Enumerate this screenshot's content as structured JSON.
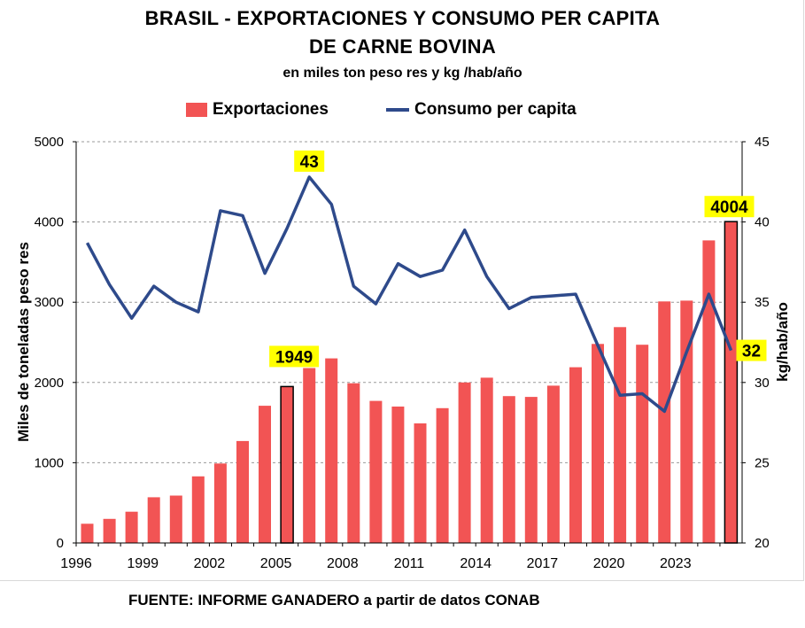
{
  "chart_data": {
    "type": "bar+line",
    "title": "BRASIL - EXPORTACIONES Y CONSUMO PER CAPITA",
    "title_line2": "DE CARNE BOVINA",
    "subtitle": "en miles ton peso res y kg /hab/año",
    "ylabel_left": "Miles de toneladas peso res",
    "ylabel_right": "kg/hab/año",
    "ylim_left": [
      0,
      5000
    ],
    "ylim_right": [
      20,
      45
    ],
    "yticks_left": [
      "0",
      "1000",
      "2000",
      "3000",
      "4000",
      "5000"
    ],
    "yticks_right": [
      "20",
      "25",
      "30",
      "35",
      "40",
      "45"
    ],
    "years": [
      1996,
      1997,
      1998,
      1999,
      2000,
      2001,
      2002,
      2003,
      2004,
      2005,
      2006,
      2007,
      2008,
      2009,
      2010,
      2011,
      2012,
      2013,
      2014,
      2015,
      2016,
      2017,
      2018,
      2019,
      2020,
      2021,
      2022,
      2023,
      2024,
      2025
    ],
    "xtick_labels": [
      "1996",
      "1999",
      "2002",
      "2005",
      "2008",
      "2011",
      "2014",
      "2017",
      "2020",
      "2023"
    ],
    "series": [
      {
        "name": "Exportaciones",
        "type": "bar",
        "color": "#f25454",
        "values": [
          240,
          300,
          390,
          570,
          590,
          830,
          990,
          1270,
          1710,
          1949,
          2180,
          2300,
          1990,
          1770,
          1700,
          1490,
          1680,
          2000,
          2060,
          1830,
          1820,
          1960,
          2190,
          2480,
          2690,
          2470,
          3010,
          3020,
          3770,
          4004
        ]
      },
      {
        "name": "Consumo per capita",
        "type": "line",
        "color": "#2e4a8b",
        "values": [
          38.7,
          36.1,
          34.0,
          36.0,
          35.0,
          34.4,
          40.7,
          40.4,
          36.8,
          39.6,
          42.8,
          41.1,
          36.0,
          34.9,
          37.4,
          36.6,
          37.0,
          39.5,
          36.6,
          34.6,
          35.3,
          35.4,
          35.5,
          32.3,
          29.2,
          29.3,
          28.2,
          31.9,
          35.5,
          32.0
        ]
      }
    ],
    "annotations": [
      {
        "label": "43",
        "year": 2006,
        "series": "Consumo per capita"
      },
      {
        "label": "1949",
        "year": 2005,
        "series": "Exportaciones"
      },
      {
        "label": "4004",
        "year": 2025,
        "series": "Exportaciones"
      },
      {
        "label": "32",
        "year": 2025,
        "series": "Consumo per capita"
      }
    ],
    "legend": [
      "Exportaciones",
      "Consumo per capita"
    ],
    "legend_position": "top-center",
    "grid": true
  },
  "source": "FUENTE: INFORME GANADERO a partir de datos CONAB"
}
